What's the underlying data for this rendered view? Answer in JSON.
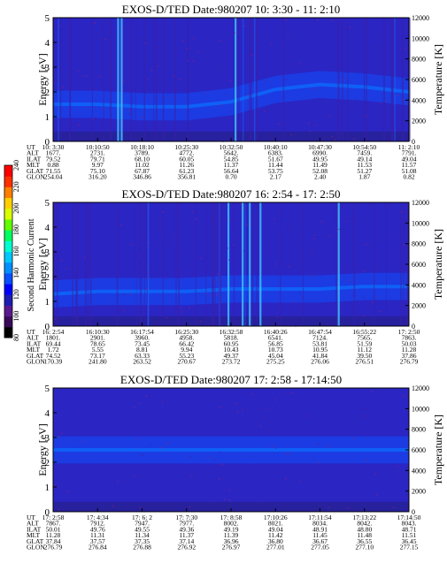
{
  "figure": {
    "colorbar": {
      "label": "Second Harmonic Current",
      "ticks": [
        "80",
        "100",
        "120",
        "140",
        "160",
        "180",
        "200",
        "220",
        "240"
      ],
      "colors": [
        "#000000",
        "#3a0a5a",
        "#5a1a8e",
        "#1e1eb4",
        "#0000ff",
        "#0a50ff",
        "#0090ff",
        "#00c8ff",
        "#00ffd0",
        "#00ff60",
        "#60ff00",
        "#d8ff00",
        "#ffd000",
        "#ff8000",
        "#ff3000",
        "#ff0000"
      ]
    }
  },
  "chart_data": [
    {
      "type": "heatmap",
      "title": "EXOS-D/TED   Date:980207  10: 3:30 - 11: 2:10",
      "ylabel": "Energy [eV]",
      "y2label": "Temperature [K]",
      "ylim": [
        0,
        5
      ],
      "y2lim": [
        0,
        12000
      ],
      "yticks": [
        "0",
        "1",
        "2",
        "3",
        "4",
        "5"
      ],
      "y2ticks": [
        "0",
        "2000",
        "4000",
        "6000",
        "8000",
        "10000",
        "12000"
      ],
      "row_labels": [
        "UT",
        "ALT",
        "ILAT",
        "MLT",
        "GLAT",
        "GLON"
      ],
      "columns": [
        [
          "10: 3:30",
          "1677.",
          "79.52",
          "0.88",
          "71.55",
          "254.04"
        ],
        [
          "10:10:50",
          "2731.",
          "79.71",
          "9.97",
          "75.10",
          "316.20"
        ],
        [
          "10:18:10",
          "3789.",
          "68.10",
          "11.02",
          "67.87",
          "346.86"
        ],
        [
          "10:25:30",
          "4772.",
          "60.05",
          "11.26",
          "61.23",
          "356.81"
        ],
        [
          "10:32:50",
          "5642.",
          "54.85",
          "11.37",
          "56.64",
          "0.70"
        ],
        [
          "10:40:10",
          "6383.",
          "51.67",
          "11.44",
          "53.75",
          "2.17"
        ],
        [
          "10:47:30",
          "6990.",
          "49.95",
          "11.49",
          "52.08",
          "2.40"
        ],
        [
          "10:54:50",
          "7459.",
          "49.14",
          "11.53",
          "51.27",
          "1.87"
        ],
        [
          "11: 2:10",
          "7791.",
          "49.04",
          "11.57",
          "51.08",
          "0.82"
        ]
      ],
      "dominant_energy_ev": [
        1.5,
        1.5,
        1.4,
        1.4,
        1.6,
        2.1,
        2.3,
        2.2,
        2.0
      ]
    },
    {
      "type": "heatmap",
      "title": "EXOS-D/TED   Date:980207  16: 2:54 - 17: 2:50",
      "ylabel": "Energy [eV]",
      "y2label": "Temperature [K]",
      "ylim": [
        0,
        5
      ],
      "y2lim": [
        0,
        12000
      ],
      "yticks": [
        "0",
        "1",
        "2",
        "3",
        "4",
        "5"
      ],
      "y2ticks": [
        "0",
        "2000",
        "4000",
        "6000",
        "8000",
        "10000",
        "12000"
      ],
      "row_labels": [
        "UT",
        "ALT",
        "ILAT",
        "MLT",
        "GLAT",
        "GLON"
      ],
      "columns": [
        [
          "16: 2:54",
          "1801.",
          "69.44",
          "1.72",
          "74.52",
          "170.39"
        ],
        [
          "16:10:30",
          "2901.",
          "78.65",
          "5.55",
          "73.17",
          "241.80"
        ],
        [
          "16:17:54",
          "3960.",
          "73.45",
          "8.81",
          "63.33",
          "263.52"
        ],
        [
          "16:25:30",
          "4958.",
          "66.42",
          "9.94",
          "55.23",
          "270.67"
        ],
        [
          "16:32:58",
          "5818.",
          "60.95",
          "10.43",
          "49.37",
          "273.72"
        ],
        [
          "16:40:26",
          "6541.",
          "56.85",
          "10.73",
          "45.04",
          "275.25"
        ],
        [
          "16:47:54",
          "7124.",
          "53.81",
          "10.95",
          "41.84",
          "276.06"
        ],
        [
          "16:55:22",
          "7565.",
          "51.59",
          "11.12",
          "39.50",
          "276.51"
        ],
        [
          "17: 2:50",
          "7863.",
          "50.03",
          "11.28",
          "37.86",
          "276.79"
        ]
      ],
      "dominant_energy_ev": [
        1.3,
        1.4,
        1.4,
        1.4,
        1.5,
        1.5,
        1.5,
        1.6,
        1.6
      ]
    },
    {
      "type": "heatmap",
      "title": "EXOS-D/TED   Date:980207  17: 2:58 - 17:14:50",
      "ylabel": "Energy [eV]",
      "y2label": "Temperature [K]",
      "ylim": [
        0,
        5
      ],
      "y2lim": [
        0,
        12000
      ],
      "yticks": [
        "0",
        "1",
        "2",
        "3",
        "4",
        "5"
      ],
      "y2ticks": [
        "0",
        "2000",
        "4000",
        "6000",
        "8000",
        "10000",
        "12000"
      ],
      "row_labels": [
        "UT",
        "ALT",
        "ILAT",
        "MLT",
        "GLAT",
        "GLON"
      ],
      "columns": [
        [
          "17: 2:58",
          "7867.",
          "50.01",
          "11.28",
          "37.84",
          "276.79"
        ],
        [
          "17: 4:34",
          "7912.",
          "49.76",
          "11.31",
          "37.57",
          "276.84"
        ],
        [
          "17: 6: 2",
          "7947.",
          "49.55",
          "11.34",
          "37.35",
          "276.88"
        ],
        [
          "17: 7:30",
          "7977.",
          "49.36",
          "11.37",
          "37.14",
          "276.92"
        ],
        [
          "17: 8:58",
          "8002.",
          "49.19",
          "11.39",
          "36.96",
          "276.97"
        ],
        [
          "17:10:26",
          "8021.",
          "49.04",
          "11.42",
          "36.80",
          "277.01"
        ],
        [
          "17:11:54",
          "8034.",
          "48.91",
          "11.45",
          "36.67",
          "277.05"
        ],
        [
          "17:13:22",
          "8042.",
          "48.80",
          "11.48",
          "36.55",
          "277.10"
        ],
        [
          "17:14:50",
          "8043.",
          "48.71",
          "11.51",
          "36.45",
          "277.15"
        ]
      ],
      "dominant_energy_ev": [
        2.5,
        2.5,
        2.5,
        2.5,
        2.5,
        2.5,
        2.5,
        2.5,
        2.5
      ]
    }
  ]
}
